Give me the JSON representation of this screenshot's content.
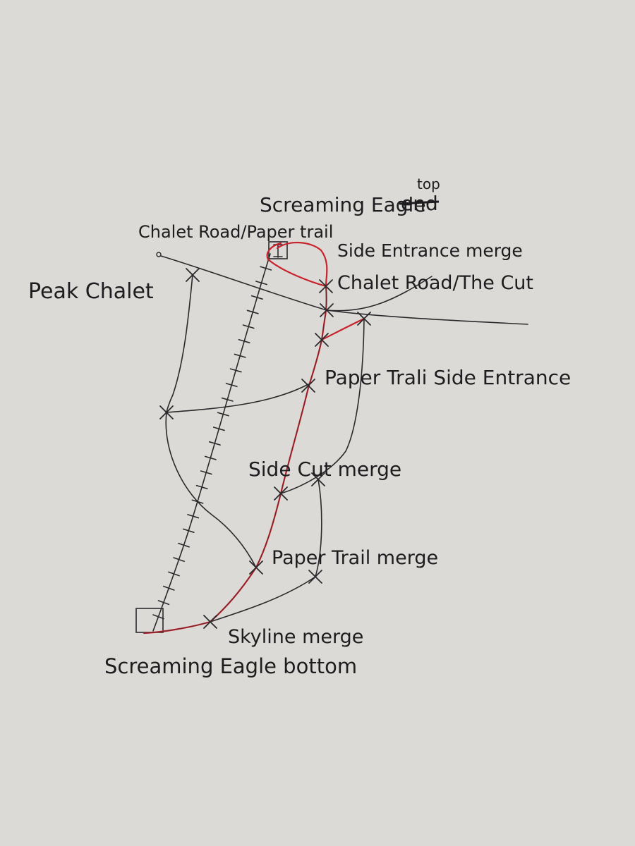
{
  "colors": {
    "paper": "#dcdad7",
    "ink": "#2a2a2c",
    "route": "#c8232c"
  },
  "labels": {
    "screaming_eagle": "Screaming Eagle",
    "top_struck": "end",
    "top_added": "top",
    "chalet_paper": "Chalet Road/Paper trail",
    "side_entrance_merge": "Side Entrance merge",
    "chalet_cut": "Chalet Road/The Cut",
    "peak_chalet": "Peak Chalet",
    "paper_side_entrance": "Paper Trali Side Entrance",
    "side_cut_merge": "Side Cut merge",
    "paper_trail_merge": "Paper Trail merge",
    "skyline_merge": "Skyline merge",
    "screaming_eagle_bottom": "Screaming Eagle bottom"
  }
}
